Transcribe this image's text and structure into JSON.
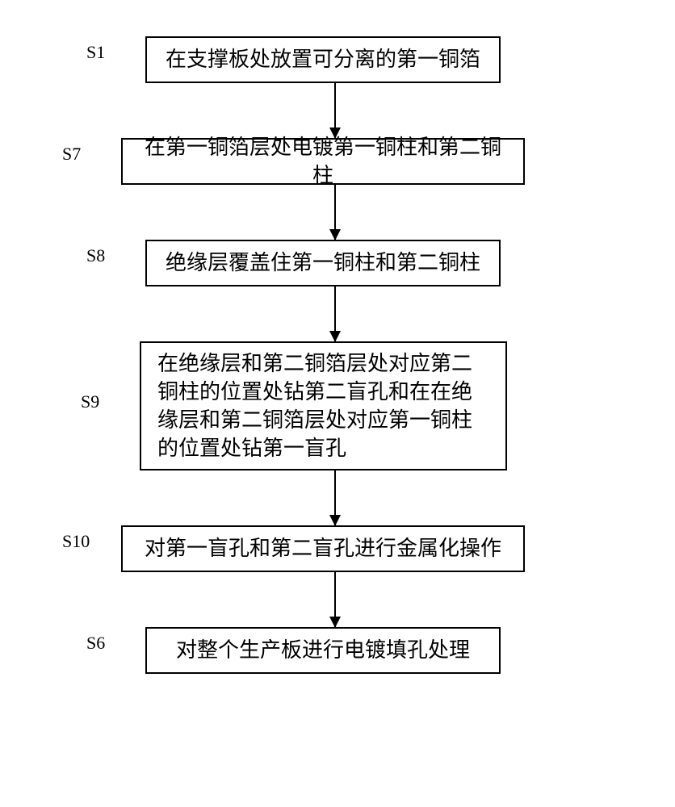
{
  "flowchart": {
    "type": "flowchart",
    "background_color": "#ffffff",
    "border_color": "#000000",
    "border_width": 2,
    "text_color": "#000000",
    "font_size": 26,
    "label_font_size": 22,
    "connector_color": "#000000",
    "arrow_size": 14,
    "steps": [
      {
        "id": "s1",
        "label": "S1",
        "text": "在支撑板处放置可分离的第一铜箔"
      },
      {
        "id": "s7",
        "label": "S7",
        "text": "在第一铜箔层处电镀第一铜柱和第二铜柱"
      },
      {
        "id": "s8",
        "label": "S8",
        "text": "绝缘层覆盖住第一铜柱和第二铜柱"
      },
      {
        "id": "s9",
        "label": "S9",
        "text": "在绝缘层和第二铜箔层处对应第二铜柱的位置处钻第二盲孔和在在绝缘层和第二铜箔层处对应第一铜柱的位置处钻第一盲孔"
      },
      {
        "id": "s10",
        "label": "S10",
        "text": "对第一盲孔和第二盲孔进行金属化操作"
      },
      {
        "id": "s6",
        "label": "S6",
        "text": "对整个生产板进行电镀填孔处理"
      }
    ]
  }
}
